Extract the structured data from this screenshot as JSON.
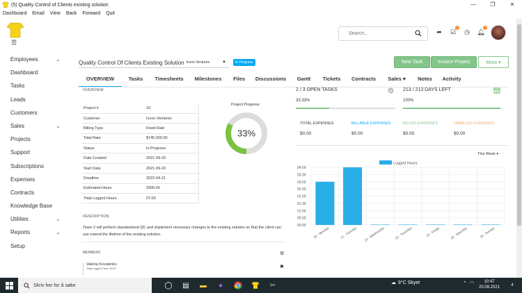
{
  "window": {
    "title": "(5) Quality Control of Clients existing solution",
    "controls": [
      "—",
      "❐",
      "✕"
    ]
  },
  "menubar": [
    "Dashboard",
    "Email",
    "View",
    "Back",
    "Forward",
    "Quit"
  ],
  "header": {
    "search_placeholder": "Search...",
    "badges": {
      "tasks": "1",
      "notifications": "1"
    }
  },
  "sidebar": {
    "items": [
      {
        "label": "Employees",
        "chevron": "⌄"
      },
      {
        "label": "Dashboard",
        "chevron": ""
      },
      {
        "label": "Tasks",
        "chevron": ""
      },
      {
        "label": "Leads",
        "chevron": ""
      },
      {
        "label": "Customers",
        "chevron": ""
      },
      {
        "label": "Sales",
        "chevron": "⌄"
      },
      {
        "label": "Projects",
        "chevron": ""
      },
      {
        "label": "Support",
        "chevron": ""
      },
      {
        "label": "Subscriptions",
        "chevron": ""
      },
      {
        "label": "Expenses",
        "chevron": ""
      },
      {
        "label": "Contracts",
        "chevron": ""
      },
      {
        "label": "Knowledge Base",
        "chevron": ""
      },
      {
        "label": "Utilities",
        "chevron": "⌄"
      },
      {
        "label": "Reports",
        "chevron": "⌄"
      },
      {
        "label": "Setup",
        "chevron": ""
      }
    ]
  },
  "project": {
    "name": "Quality Control Of Clients Existing Solution",
    "client": "Icono Ventures",
    "status": "In Progress"
  },
  "actions": {
    "new_task": "New Task",
    "invoice_project": "Invoice Project",
    "more": "More ▾"
  },
  "tabs": [
    {
      "label": "OVERVIEW",
      "w": 62
    },
    {
      "label": "Tasks",
      "w": 40
    },
    {
      "label": "Timesheets",
      "w": 56
    },
    {
      "label": "Milestones",
      "w": 56
    },
    {
      "label": "Files",
      "w": 33
    },
    {
      "label": "Discussions",
      "w": 58
    },
    {
      "label": "Gantt",
      "w": 37
    },
    {
      "label": "Tickets",
      "w": 43
    },
    {
      "label": "Contracts",
      "w": 49
    },
    {
      "label": "Sales ▾",
      "w": 46
    },
    {
      "label": "Notes",
      "w": 35
    },
    {
      "label": "Activity",
      "w": 42
    }
  ],
  "overview": {
    "section_label": "OVERVIEW",
    "rows": [
      {
        "k": "Project #",
        "v": "10"
      },
      {
        "k": "Customer",
        "v": "Icono Ventures"
      },
      {
        "k": "Billing Type",
        "v": "Fixed Rate"
      },
      {
        "k": "Total Rate",
        "v": "$745,000.00"
      },
      {
        "k": "Status",
        "v": "In Progress"
      },
      {
        "k": "Date Created",
        "v": "2021-09-20"
      },
      {
        "k": "Start Date",
        "v": "2021-09-20"
      },
      {
        "k": "Deadline",
        "v": "2022-04-21"
      },
      {
        "k": "Estimated Hours",
        "v": "2000:00"
      },
      {
        "k": "Total Logged Hours",
        "v": "07:00"
      }
    ]
  },
  "progress": {
    "label": "Project Progress",
    "value": 0.33,
    "text": "33%"
  },
  "description": {
    "label": "DESCRIPTION",
    "text": "Team 2 will perform standardized QC and implement necessary changes to the existing solution so that the client can use extend the lifetime of the existing solution."
  },
  "members": {
    "label": "MEMBERS",
    "list": [
      {
        "name": "Valeria Kovalenko",
        "logged": "Total Logged Time: 00:00"
      }
    ]
  },
  "stats": {
    "open_tasks": {
      "title": "2 / 3 OPEN TASKS",
      "pct": "33.33%",
      "fill": 0.3333
    },
    "days_left": {
      "title": "213 / 213 DAYS LEFT",
      "pct": "100%",
      "fill": 1.0
    }
  },
  "expenses": [
    {
      "label": "TOTAL EXPENSES",
      "value": "$0.00",
      "color": "#333333"
    },
    {
      "label": "BILLABLE EXPENSES",
      "value": "$0.00",
      "color": "#03a9f4"
    },
    {
      "label": "BILLED EXPENSES",
      "value": "$0.00",
      "color": "#84c58a"
    },
    {
      "label": "UNBILLED EXPENSES",
      "value": "$0.00",
      "color": "#f0a868"
    }
  ],
  "week_filter": "This Week ▾",
  "chart_data": {
    "type": "bar",
    "categories": [
      "20 - Monday",
      "21 - Tuesday",
      "22 - Wednesday",
      "23 - Thursday",
      "24 - Friday",
      "25 - Saturday",
      "26 - Sunday"
    ],
    "series": [
      {
        "name": "Logged Hours",
        "values": [
          3.0,
          4.0,
          0,
          0,
          0,
          0,
          0
        ]
      }
    ],
    "y_ticks": [
      "04:00",
      "03:30",
      "03:00",
      "02:30",
      "02:00",
      "01:30",
      "01:00",
      "00:30",
      "00:00"
    ],
    "ylim": [
      0,
      4
    ],
    "bar_color": "#2aaee8",
    "legend": "top"
  },
  "taskbar": {
    "search_placeholder": "Skriv her for å søke",
    "weather": "9°C  Skyet",
    "time": "10:47",
    "date": "20.09.2021",
    "notif_count": "4"
  }
}
